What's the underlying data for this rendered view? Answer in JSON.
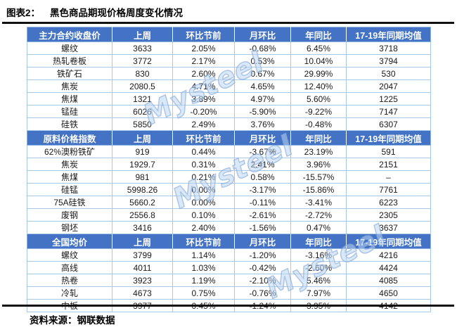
{
  "title": {
    "label": "图表2：",
    "text": "黑色商品期现价格周度变化情况"
  },
  "source": "资料来源：钢联数据",
  "watermark": "Mysteel",
  "colors": {
    "header_bg": "#4472c4",
    "header_text": "#ffffff",
    "cell_border": "#a8c8e8",
    "rise_bg": "#f8ccd0",
    "rise_text": "#e00020",
    "fall_bg": "#cdefd3",
    "fall_text": "#00a050",
    "rule": "#111111"
  },
  "table": {
    "shared_columns": [
      "上周",
      "环比节前",
      "月环比",
      "年同比",
      "17-19年同期均值"
    ],
    "sections": [
      {
        "label": "主力合约收盘价",
        "rows": [
          {
            "name": "螺纹",
            "values": [
              "3633",
              "2.05%",
              "-0.68%",
              "6.45%",
              "3718"
            ],
            "wow": "up"
          },
          {
            "name": "热轧卷板",
            "values": [
              "3772",
              "2.17%",
              "0.53%",
              "10.04%",
              "3794"
            ],
            "wow": "up"
          },
          {
            "name": "铁矿石",
            "values": [
              "830",
              "2.60%",
              "0.67%",
              "29.99%",
              "530"
            ],
            "wow": "up"
          },
          {
            "name": "焦炭",
            "values": [
              "2080.5",
              "4.71%",
              "4.65%",
              "12.40%",
              "2047"
            ],
            "wow": "up"
          },
          {
            "name": "焦煤",
            "values": [
              "1321",
              "3.89%",
              "4.97%",
              "5.60%",
              "1225"
            ],
            "wow": "up"
          },
          {
            "name": "锰硅",
            "values": [
              "6026",
              "-0.20%",
              "-5.90%",
              "-9.22%",
              "7147"
            ],
            "wow": "down"
          },
          {
            "name": "硅铁",
            "values": [
              "5850",
              "2.49%",
              "3.76%",
              "-0.48%",
              "6307"
            ],
            "wow": "up"
          }
        ]
      },
      {
        "label": "原料价格指数",
        "rows": [
          {
            "name": "62%澳粉铁矿",
            "values": [
              "919",
              "0.44%",
              "-3.67%",
              "23.19%",
              "591"
            ],
            "wow": "up"
          },
          {
            "name": "焦炭",
            "values": [
              "1929.7",
              "0.31%",
              "2.41%",
              "3.96%",
              "2151"
            ],
            "wow": "up"
          },
          {
            "name": "焦煤",
            "values": [
              "981",
              "0.21%",
              "0.58%",
              "-15.57%",
              "–"
            ],
            "wow": "up"
          },
          {
            "name": "硅锰",
            "values": [
              "5998.26",
              "0.00%",
              "-3.17%",
              "-15.86%",
              "7761"
            ],
            "wow": "flat"
          },
          {
            "name": "75A硅铁",
            "values": [
              "5660.2",
              "0.00%",
              "-0.11%",
              "-3.41%",
              "6223"
            ],
            "wow": "flat"
          },
          {
            "name": "废钢",
            "values": [
              "2556.8",
              "0.10%",
              "-2.61%",
              "-2.72%",
              "2305"
            ],
            "wow": "up"
          },
          {
            "name": "钢坯",
            "values": [
              "3416",
              "2.40%",
              "-1.56%",
              "0.47%",
              "3637"
            ],
            "wow": "up"
          }
        ]
      },
      {
        "label": "全国均价",
        "rows": [
          {
            "name": "螺纹",
            "values": [
              "3799",
              "1.14%",
              "-1.20%",
              "-3.16%",
              "4216"
            ],
            "wow": "up"
          },
          {
            "name": "高线",
            "values": [
              "4011",
              "1.03%",
              "-0.42%",
              "-2.60%",
              "4424"
            ],
            "wow": "up"
          },
          {
            "name": "热卷",
            "values": [
              "3923",
              "1.19%",
              "-2.10%",
              "5.46%",
              "4085"
            ],
            "wow": "up"
          },
          {
            "name": "冷轧",
            "values": [
              "4673",
              "0.75%",
              "-0.76%",
              "7.97%",
              "4650"
            ],
            "wow": "up"
          },
          {
            "name": "中板",
            "values": [
              "3977",
              "0.45%",
              "-1.24%",
              "3.95%",
              "4142"
            ],
            "wow": "up"
          }
        ]
      }
    ]
  }
}
